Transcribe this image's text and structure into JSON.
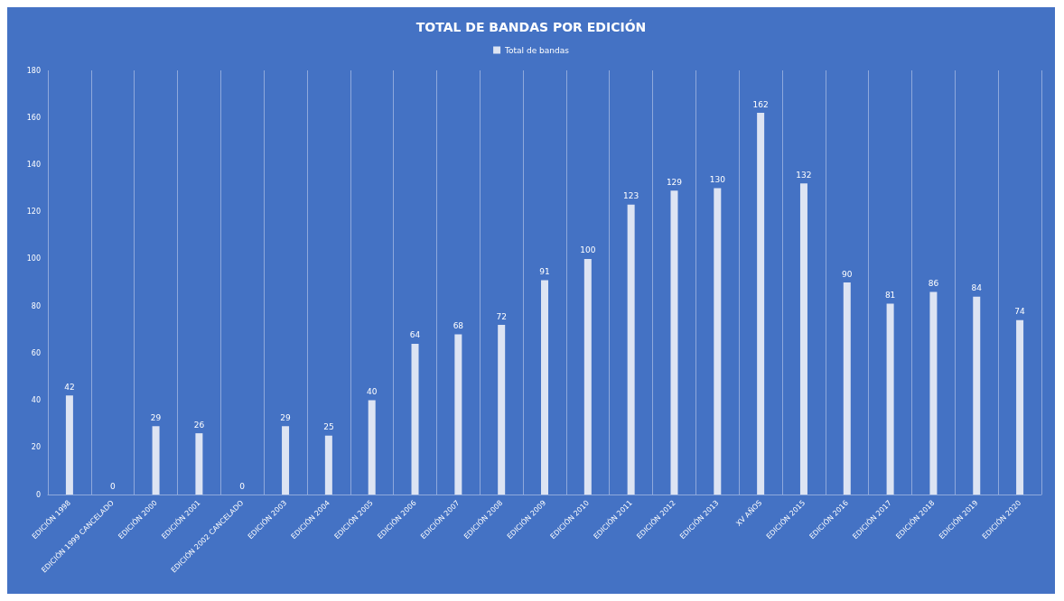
{
  "chart_data": {
    "type": "bar",
    "title": "TOTAL DE BANDAS POR EDICIÓN",
    "categories": [
      "EDICIÓN 1998",
      "EDICIÓN 1999 CANCELADO",
      "EDICIÓN 2000",
      "EDICIÓN 2001",
      "EDICIÓN 2002 CANCELADO",
      "EDICIÓN 2003",
      "EDICIÓN 2004",
      "EDICIÓN 2005",
      "EDICIÓN 2006",
      "EDICIÓN 2007",
      "EDICIÓN 2008",
      "EDICIÓN 2009",
      "EDICIÓN 2010",
      "EDICIÓN 2011",
      "EDICIÓN 2012",
      "EDICIÓN 2013",
      "XV AÑOS",
      "EDICIÓN 2015",
      "EDICIÓN 2016",
      "EDICIÓN 2017",
      "EDICIÓN 2018",
      "EDICIÓN 2019",
      "EDICIÓN 2020"
    ],
    "series": [
      {
        "name": "Total de bandas",
        "color": "#dde4f3",
        "values": [
          42,
          0,
          29,
          26,
          0,
          29,
          25,
          40,
          64,
          68,
          72,
          91,
          100,
          123,
          129,
          130,
          162,
          132,
          90,
          81,
          86,
          84,
          74
        ]
      }
    ],
    "ylim": [
      0,
      180
    ],
    "yticks": [
      0,
      20,
      40,
      60,
      80,
      100,
      120,
      140,
      160,
      180
    ],
    "grid": "x",
    "legend": "top",
    "data_labels": true
  }
}
